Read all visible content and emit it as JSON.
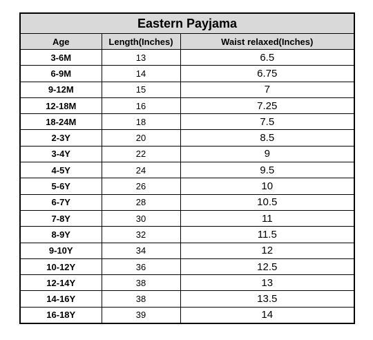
{
  "table": {
    "title": "Eastern Payjama",
    "headers": [
      "Age",
      "Length(Inches)",
      "Waist relaxed(Inches)"
    ],
    "rows": [
      [
        "3-6M",
        "13",
        "6.5"
      ],
      [
        "6-9M",
        "14",
        "6.75"
      ],
      [
        "9-12M",
        "15",
        "7"
      ],
      [
        "12-18M",
        "16",
        "7.25"
      ],
      [
        "18-24M",
        "18",
        "7.5"
      ],
      [
        "2-3Y",
        "20",
        "8.5"
      ],
      [
        "3-4Y",
        "22",
        "9"
      ],
      [
        "4-5Y",
        "24",
        "9.5"
      ],
      [
        "5-6Y",
        "26",
        "10"
      ],
      [
        "6-7Y",
        "28",
        "10.5"
      ],
      [
        "7-8Y",
        "30",
        "11"
      ],
      [
        "8-9Y",
        "32",
        "11.5"
      ],
      [
        "9-10Y",
        "34",
        "12"
      ],
      [
        "10-12Y",
        "36",
        "12.5"
      ],
      [
        "12-14Y",
        "38",
        "13"
      ],
      [
        "14-16Y",
        "38",
        "13.5"
      ],
      [
        "16-18Y",
        "39",
        "14"
      ]
    ]
  }
}
